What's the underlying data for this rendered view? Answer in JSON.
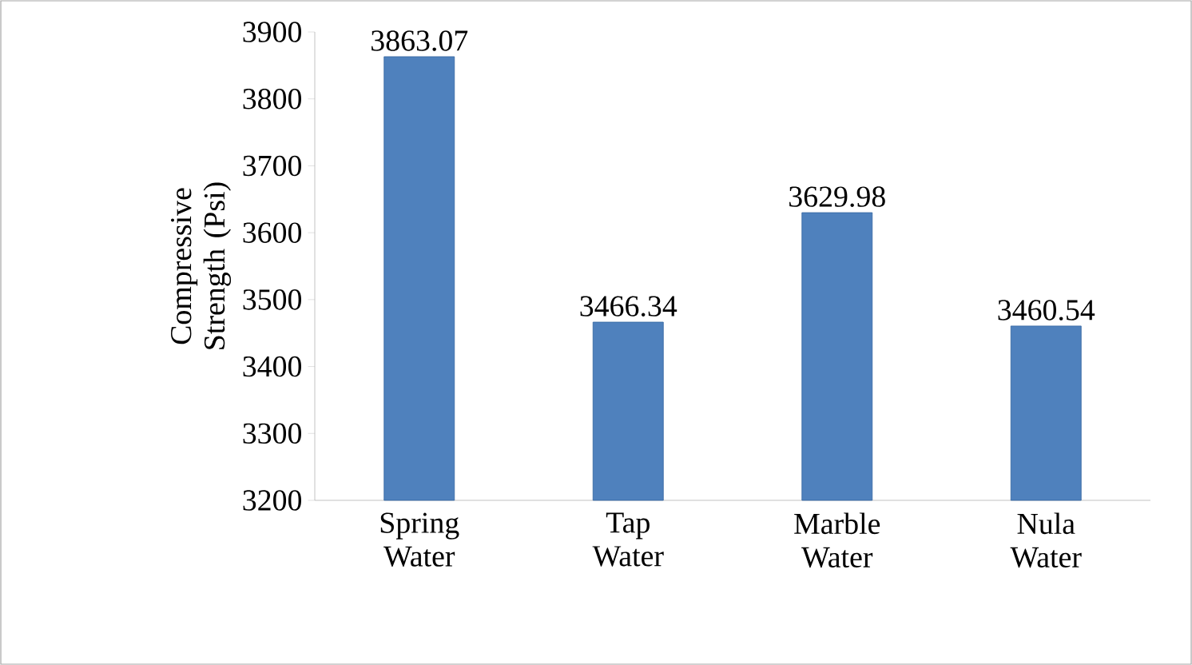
{
  "chart_data": {
    "type": "bar",
    "ylabel": "Compressive Strength (Psi)",
    "categories": [
      "Spring Water",
      "Tap Water",
      "Marble Water",
      "Nula Water"
    ],
    "values": [
      3863.07,
      3466.34,
      3629.98,
      3460.54
    ],
    "color": "#4f81bd",
    "ylim": [
      3200,
      3900
    ],
    "yticks": [
      3200,
      3300,
      3400,
      3500,
      3600,
      3700,
      3800,
      3900
    ],
    "data_labels": true,
    "grid": false,
    "legend": false
  }
}
